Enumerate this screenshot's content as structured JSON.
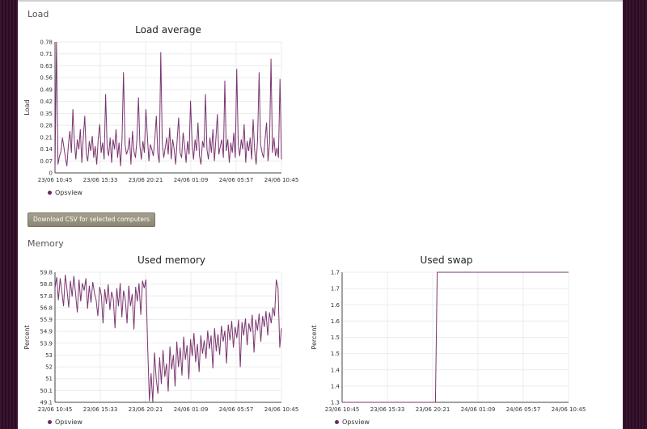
{
  "sections": {
    "load": "Load",
    "memory": "Memory"
  },
  "buttons": {
    "download_csv": "Download CSV for selected computers"
  },
  "colors": {
    "series": "#7a3570",
    "panel_bg": "#ffffff",
    "page_bg": "#2d0f25"
  },
  "chart_data": [
    {
      "id": "load",
      "type": "line",
      "title": "Load average",
      "xlabel": "",
      "ylabel": "Load",
      "x_ticks": [
        "23/06 10:45",
        "23/06 15:33",
        "23/06 20:21",
        "24/06 01:09",
        "24/06 05:57",
        "24/06 10:45"
      ],
      "y_ticks": [
        "0",
        "0.07",
        "0.14",
        "0.21",
        "0.28",
        "0.35",
        "0.42",
        "0.49",
        "0.56",
        "0.63",
        "0.71",
        "0.78"
      ],
      "ylim": [
        0,
        0.78
      ],
      "grid": true,
      "legend_position": "bottom-left",
      "series": [
        {
          "name": "Opsview",
          "values": [
            0.02,
            0.78,
            0.05,
            0.1,
            0.13,
            0.21,
            0.15,
            0.09,
            0.04,
            0.17,
            0.25,
            0.12,
            0.38,
            0.19,
            0.08,
            0.2,
            0.14,
            0.26,
            0.06,
            0.21,
            0.34,
            0.11,
            0.07,
            0.19,
            0.13,
            0.22,
            0.09,
            0.16,
            0.05,
            0.2,
            0.29,
            0.12,
            0.18,
            0.08,
            0.47,
            0.15,
            0.1,
            0.21,
            0.06,
            0.2,
            0.14,
            0.26,
            0.09,
            0.18,
            0.04,
            0.2,
            0.6,
            0.17,
            0.11,
            0.14,
            0.21,
            0.05,
            0.25,
            0.13,
            0.09,
            0.2,
            0.45,
            0.16,
            0.08,
            0.19,
            0.12,
            0.38,
            0.22,
            0.07,
            0.17,
            0.14,
            0.1,
            0.2,
            0.34,
            0.12,
            0.06,
            0.72,
            0.18,
            0.09,
            0.15,
            0.21,
            0.11,
            0.27,
            0.08,
            0.2,
            0.14,
            0.05,
            0.2,
            0.33,
            0.12,
            0.09,
            0.24,
            0.16,
            0.06,
            0.19,
            0.11,
            0.43,
            0.18,
            0.08,
            0.2,
            0.13,
            0.3,
            0.1,
            0.05,
            0.19,
            0.15,
            0.47,
            0.14,
            0.08,
            0.21,
            0.12,
            0.26,
            0.07,
            0.2,
            0.35,
            0.11,
            0.16,
            0.2,
            0.09,
            0.55,
            0.13,
            0.2,
            0.06,
            0.18,
            0.12,
            0.24,
            0.09,
            0.62,
            0.17,
            0.1,
            0.2,
            0.14,
            0.29,
            0.06,
            0.19,
            0.13,
            0.21,
            0.08,
            0.32,
            0.14,
            0.05,
            0.2,
            0.6,
            0.17,
            0.12,
            0.09,
            0.2,
            0.3,
            0.07,
            0.18,
            0.68,
            0.12,
            0.21,
            0.1,
            0.15,
            0.09,
            0.56,
            0.08
          ]
        }
      ]
    },
    {
      "id": "memory",
      "type": "line",
      "title": "Used memory",
      "xlabel": "",
      "ylabel": "Percent",
      "x_ticks": [
        "23/06 10:45",
        "23/06 15:33",
        "23/06 20:21",
        "24/06 01:09",
        "24/06 05:57",
        "24/06 10:45"
      ],
      "y_ticks": [
        "49.1",
        "50.1",
        "51",
        "52",
        "53",
        "53.9",
        "54.9",
        "55.9",
        "56.8",
        "57.8",
        "58.8",
        "59.8"
      ],
      "ylim": [
        49.1,
        59.8
      ],
      "grid": true,
      "legend_position": "bottom-left",
      "series": [
        {
          "name": "Opsview",
          "values": [
            58.5,
            59.4,
            57.5,
            59.3,
            58.2,
            57.0,
            59.6,
            58.4,
            56.9,
            59.1,
            57.8,
            59.5,
            58.0,
            56.5,
            59.2,
            57.4,
            58.9,
            58.3,
            59.3,
            56.8,
            58.7,
            57.3,
            59.0,
            58.1,
            57.5,
            56.2,
            58.6,
            57.9,
            55.6,
            58.4,
            57.2,
            58.8,
            56.7,
            58.2,
            57.6,
            55.2,
            58.5,
            57.0,
            58.9,
            56.1,
            58.3,
            57.5,
            55.6,
            58.7,
            57.0,
            58.0,
            55.1,
            58.6,
            57.4,
            58.9,
            56.3,
            59.1,
            58.5,
            59.2,
            53.9,
            49.2,
            51.5,
            49.1,
            53.2,
            51.0,
            49.8,
            52.8,
            50.6,
            53.4,
            51.2,
            52.3,
            50.0,
            53.7,
            51.8,
            53.0,
            50.4,
            54.1,
            52.0,
            53.6,
            51.3,
            54.5,
            52.6,
            53.8,
            51.0,
            54.3,
            52.9,
            54.8,
            52.4,
            53.9,
            51.6,
            54.6,
            53.1,
            54.2,
            52.7,
            55.0,
            53.5,
            54.6,
            51.9,
            55.2,
            53.3,
            54.7,
            53.0,
            55.4,
            54.1,
            55.0,
            52.3,
            55.5,
            54.2,
            55.8,
            53.6,
            55.3,
            54.4,
            55.9,
            52.0,
            55.7,
            54.6,
            56.0,
            53.8,
            55.6,
            54.9,
            56.3,
            53.2,
            55.9,
            55.0,
            56.4,
            54.1,
            56.2,
            55.3,
            56.6,
            54.6,
            56.5,
            55.6,
            56.9,
            56.2,
            59.2,
            58.5,
            53.6,
            55.2
          ]
        }
      ]
    },
    {
      "id": "swap",
      "type": "line",
      "title": "Used swap",
      "xlabel": "",
      "ylabel": "Percent",
      "x_ticks": [
        "23/06 10:45",
        "23/06 15:33",
        "23/06 20:21",
        "24/06 01:09",
        "24/06 05:57",
        "24/06 10:45"
      ],
      "y_ticks": [
        "1.3",
        "1.4",
        "1.4",
        "1.5",
        "1.5",
        "1.6",
        "1.6",
        "1.7",
        "1.7"
      ],
      "ylim": [
        1.3,
        1.7
      ],
      "grid": true,
      "legend_position": "bottom-left",
      "series": [
        {
          "name": "Opsview",
          "values": [
            1.3,
            1.3,
            1.3,
            1.3,
            1.3,
            1.3,
            1.3,
            1.3,
            1.3,
            1.3,
            1.3,
            1.3,
            1.3,
            1.3,
            1.3,
            1.3,
            1.3,
            1.3,
            1.3,
            1.3,
            1.3,
            1.3,
            1.3,
            1.3,
            1.3,
            1.3,
            1.3,
            1.3,
            1.3,
            1.3,
            1.3,
            1.3,
            1.3,
            1.3,
            1.3,
            1.3,
            1.3,
            1.3,
            1.3,
            1.3,
            1.3,
            1.3,
            1.3,
            1.3,
            1.3,
            1.3,
            1.3,
            1.3,
            1.3,
            1.3,
            1.3,
            1.3,
            1.3,
            1.3,
            1.3,
            1.7,
            1.7,
            1.7,
            1.7,
            1.7,
            1.7,
            1.7,
            1.7,
            1.7,
            1.7,
            1.7,
            1.7,
            1.7,
            1.7,
            1.7,
            1.7,
            1.7,
            1.7,
            1.7,
            1.7,
            1.7,
            1.7,
            1.7,
            1.7,
            1.7,
            1.7,
            1.7,
            1.7,
            1.7,
            1.7,
            1.7,
            1.7,
            1.7,
            1.7,
            1.7,
            1.7,
            1.7,
            1.7,
            1.7,
            1.7,
            1.7,
            1.7,
            1.7,
            1.7,
            1.7,
            1.7,
            1.7,
            1.7,
            1.7,
            1.7,
            1.7,
            1.7,
            1.7,
            1.7,
            1.7,
            1.7,
            1.7,
            1.7,
            1.7,
            1.7,
            1.7,
            1.7,
            1.7,
            1.7,
            1.7,
            1.7,
            1.7,
            1.7,
            1.7,
            1.7,
            1.7,
            1.7,
            1.7,
            1.7,
            1.7,
            1.7,
            1.7
          ]
        }
      ]
    }
  ]
}
